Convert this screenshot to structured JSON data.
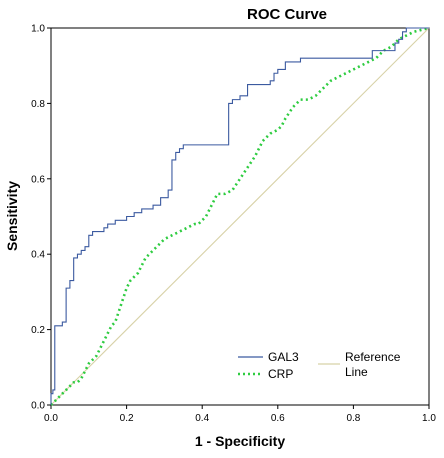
{
  "chart_data": {
    "type": "line",
    "title": "ROC Curve",
    "xlabel": "1 - Specificity",
    "ylabel": "Sensitivity",
    "xlim": [
      0,
      1
    ],
    "ylim": [
      0,
      1
    ],
    "xticks": [
      "0.0",
      "0.2",
      "0.4",
      "0.6",
      "0.8",
      "1.0"
    ],
    "yticks": [
      "0.0",
      "0.2",
      "0.4",
      "0.6",
      "0.8",
      "1.0"
    ],
    "grid": false,
    "legend_position": "bottom-right",
    "series": [
      {
        "name": "GAL3",
        "color": "#3b5aa0",
        "style": "solid",
        "x": [
          0,
          0,
          0.005,
          0.005,
          0.01,
          0.01,
          0.03,
          0.03,
          0.04,
          0.04,
          0.05,
          0.05,
          0.06,
          0.06,
          0.07,
          0.07,
          0.08,
          0.08,
          0.09,
          0.09,
          0.1,
          0.1,
          0.11,
          0.11,
          0.14,
          0.14,
          0.15,
          0.15,
          0.17,
          0.17,
          0.2,
          0.2,
          0.22,
          0.22,
          0.24,
          0.24,
          0.27,
          0.27,
          0.29,
          0.29,
          0.31,
          0.31,
          0.32,
          0.32,
          0.33,
          0.33,
          0.34,
          0.34,
          0.35,
          0.35,
          0.47,
          0.47,
          0.48,
          0.48,
          0.5,
          0.5,
          0.52,
          0.52,
          0.58,
          0.58,
          0.59,
          0.59,
          0.6,
          0.6,
          0.62,
          0.62,
          0.66,
          0.66,
          0.85,
          0.85,
          0.91,
          0.91,
          0.92,
          0.92,
          0.93,
          0.93,
          0.94,
          0.94,
          0.99,
          0.99,
          1.0
        ],
        "y": [
          0,
          0.03,
          0.03,
          0.04,
          0.04,
          0.21,
          0.21,
          0.22,
          0.22,
          0.31,
          0.31,
          0.33,
          0.33,
          0.39,
          0.39,
          0.4,
          0.4,
          0.41,
          0.41,
          0.42,
          0.42,
          0.45,
          0.45,
          0.46,
          0.46,
          0.47,
          0.47,
          0.48,
          0.48,
          0.49,
          0.49,
          0.5,
          0.5,
          0.51,
          0.51,
          0.52,
          0.52,
          0.53,
          0.53,
          0.55,
          0.55,
          0.57,
          0.57,
          0.65,
          0.65,
          0.67,
          0.67,
          0.68,
          0.68,
          0.69,
          0.69,
          0.8,
          0.8,
          0.81,
          0.81,
          0.82,
          0.82,
          0.85,
          0.85,
          0.86,
          0.86,
          0.88,
          0.88,
          0.89,
          0.89,
          0.91,
          0.91,
          0.92,
          0.92,
          0.94,
          0.94,
          0.96,
          0.96,
          0.97,
          0.97,
          0.99,
          0.99,
          1.0,
          1.0,
          1.0,
          1.0
        ]
      },
      {
        "name": "CRP",
        "color": "#2ecc40",
        "style": "dotted",
        "x": [
          0,
          0.02,
          0.03,
          0.05,
          0.06,
          0.07,
          0.08,
          0.09,
          0.1,
          0.11,
          0.12,
          0.13,
          0.14,
          0.15,
          0.16,
          0.17,
          0.18,
          0.19,
          0.2,
          0.21,
          0.22,
          0.23,
          0.24,
          0.25,
          0.27,
          0.28,
          0.3,
          0.32,
          0.34,
          0.36,
          0.38,
          0.39,
          0.4,
          0.41,
          0.42,
          0.43,
          0.44,
          0.46,
          0.48,
          0.5,
          0.52,
          0.54,
          0.56,
          0.58,
          0.6,
          0.61,
          0.62,
          0.64,
          0.66,
          0.67,
          0.68,
          0.7,
          0.72,
          0.74,
          0.76,
          0.78,
          0.8,
          0.82,
          0.84,
          0.86,
          0.88,
          0.9,
          0.92,
          0.94,
          0.96,
          1.0
        ],
        "y": [
          0,
          0.02,
          0.03,
          0.05,
          0.06,
          0.06,
          0.07,
          0.09,
          0.11,
          0.12,
          0.13,
          0.15,
          0.17,
          0.19,
          0.21,
          0.22,
          0.25,
          0.28,
          0.31,
          0.33,
          0.34,
          0.35,
          0.37,
          0.39,
          0.41,
          0.42,
          0.44,
          0.45,
          0.46,
          0.47,
          0.48,
          0.48,
          0.49,
          0.5,
          0.52,
          0.54,
          0.56,
          0.56,
          0.57,
          0.6,
          0.63,
          0.66,
          0.7,
          0.72,
          0.73,
          0.74,
          0.76,
          0.79,
          0.81,
          0.81,
          0.81,
          0.82,
          0.84,
          0.86,
          0.87,
          0.88,
          0.89,
          0.9,
          0.91,
          0.92,
          0.94,
          0.95,
          0.97,
          0.98,
          0.99,
          1.0
        ]
      },
      {
        "name": "Reference Line",
        "color": "#d8d2a8",
        "style": "solid",
        "x": [
          0,
          1
        ],
        "y": [
          0,
          1
        ]
      }
    ]
  },
  "legend": {
    "items": [
      {
        "label": "GAL3"
      },
      {
        "label": "CRP"
      },
      {
        "label_line1": "Reference",
        "label_line2": "Line"
      }
    ]
  }
}
